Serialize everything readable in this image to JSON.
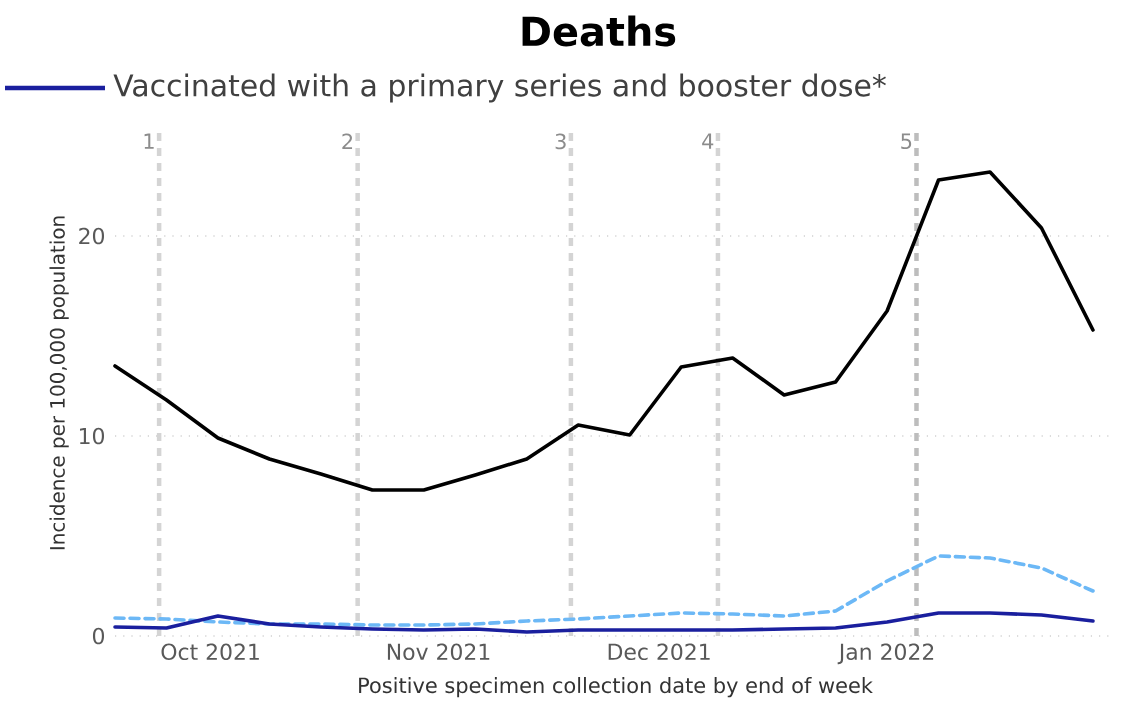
{
  "chart_data": {
    "type": "line",
    "title": "Deaths",
    "xlabel": "Positive specimen collection date by end of week",
    "ylabel": "Incidence per 100,000 population",
    "x": [
      "2021-09-18",
      "2021-09-25",
      "2021-10-02",
      "2021-10-09",
      "2021-10-16",
      "2021-10-23",
      "2021-10-30",
      "2021-11-06",
      "2021-11-13",
      "2021-11-20",
      "2021-11-27",
      "2021-12-04",
      "2021-12-11",
      "2021-12-18",
      "2021-12-25",
      "2022-01-01",
      "2022-01-08",
      "2022-01-15",
      "2022-01-22",
      "2022-01-29"
    ],
    "series": [
      {
        "color": "#000000",
        "values": [
          13.5,
          11.8,
          9.9,
          8.85,
          8.1,
          7.3,
          7.3,
          8.05,
          8.85,
          10.55,
          10.05,
          13.45,
          13.9,
          12.05,
          12.7,
          16.25,
          22.8,
          23.2,
          20.4,
          15.3
        ]
      },
      {
        "color": "#6cb8f6",
        "line_style": "dashed",
        "values": [
          0.9,
          0.85,
          0.7,
          0.6,
          0.6,
          0.55,
          0.55,
          0.6,
          0.75,
          0.85,
          1.0,
          1.15,
          1.1,
          1.0,
          1.25,
          2.75,
          4.0,
          3.9,
          3.4,
          2.25
        ]
      },
      {
        "name": "Vaccinated with a primary series and booster dose*",
        "color": "#1a1f9e",
        "values": [
          0.45,
          0.4,
          1.0,
          0.6,
          0.45,
          0.35,
          0.3,
          0.35,
          0.2,
          0.3,
          0.3,
          0.3,
          0.3,
          0.35,
          0.4,
          0.7,
          1.15,
          1.15,
          1.05,
          0.75
        ]
      }
    ],
    "xlim": [
      "2021-09-18",
      "2022-02-01"
    ],
    "ylim": [
      0,
      25.3
    ],
    "xticks": [
      {
        "value": "2021-10-01",
        "label": "Oct 2021"
      },
      {
        "value": "2021-11-01",
        "label": "Nov 2021"
      },
      {
        "value": "2021-12-01",
        "label": "Dec 2021"
      },
      {
        "value": "2022-01-01",
        "label": "Jan 2022"
      }
    ],
    "yticks": [
      0,
      10,
      20
    ],
    "grid": "y",
    "legend": "top left",
    "ref_lines": [
      {
        "axis": "x",
        "value": "2021-09-24",
        "label": "1",
        "color": "#d4d4d4",
        "line_style": "dashed"
      },
      {
        "axis": "x",
        "value": "2021-10-21",
        "label": "2",
        "color": "#d4d4d4",
        "line_style": "dashed"
      },
      {
        "axis": "x",
        "value": "2021-11-19",
        "label": "3",
        "color": "#d4d4d4",
        "line_style": "dashed"
      },
      {
        "axis": "x",
        "value": "2021-12-09",
        "label": "4",
        "color": "#d4d4d4",
        "line_style": "dashed"
      },
      {
        "axis": "x",
        "value": "2022-01-05",
        "label": "5",
        "color": "#bdbdbd",
        "line_style": "dashed"
      }
    ]
  }
}
